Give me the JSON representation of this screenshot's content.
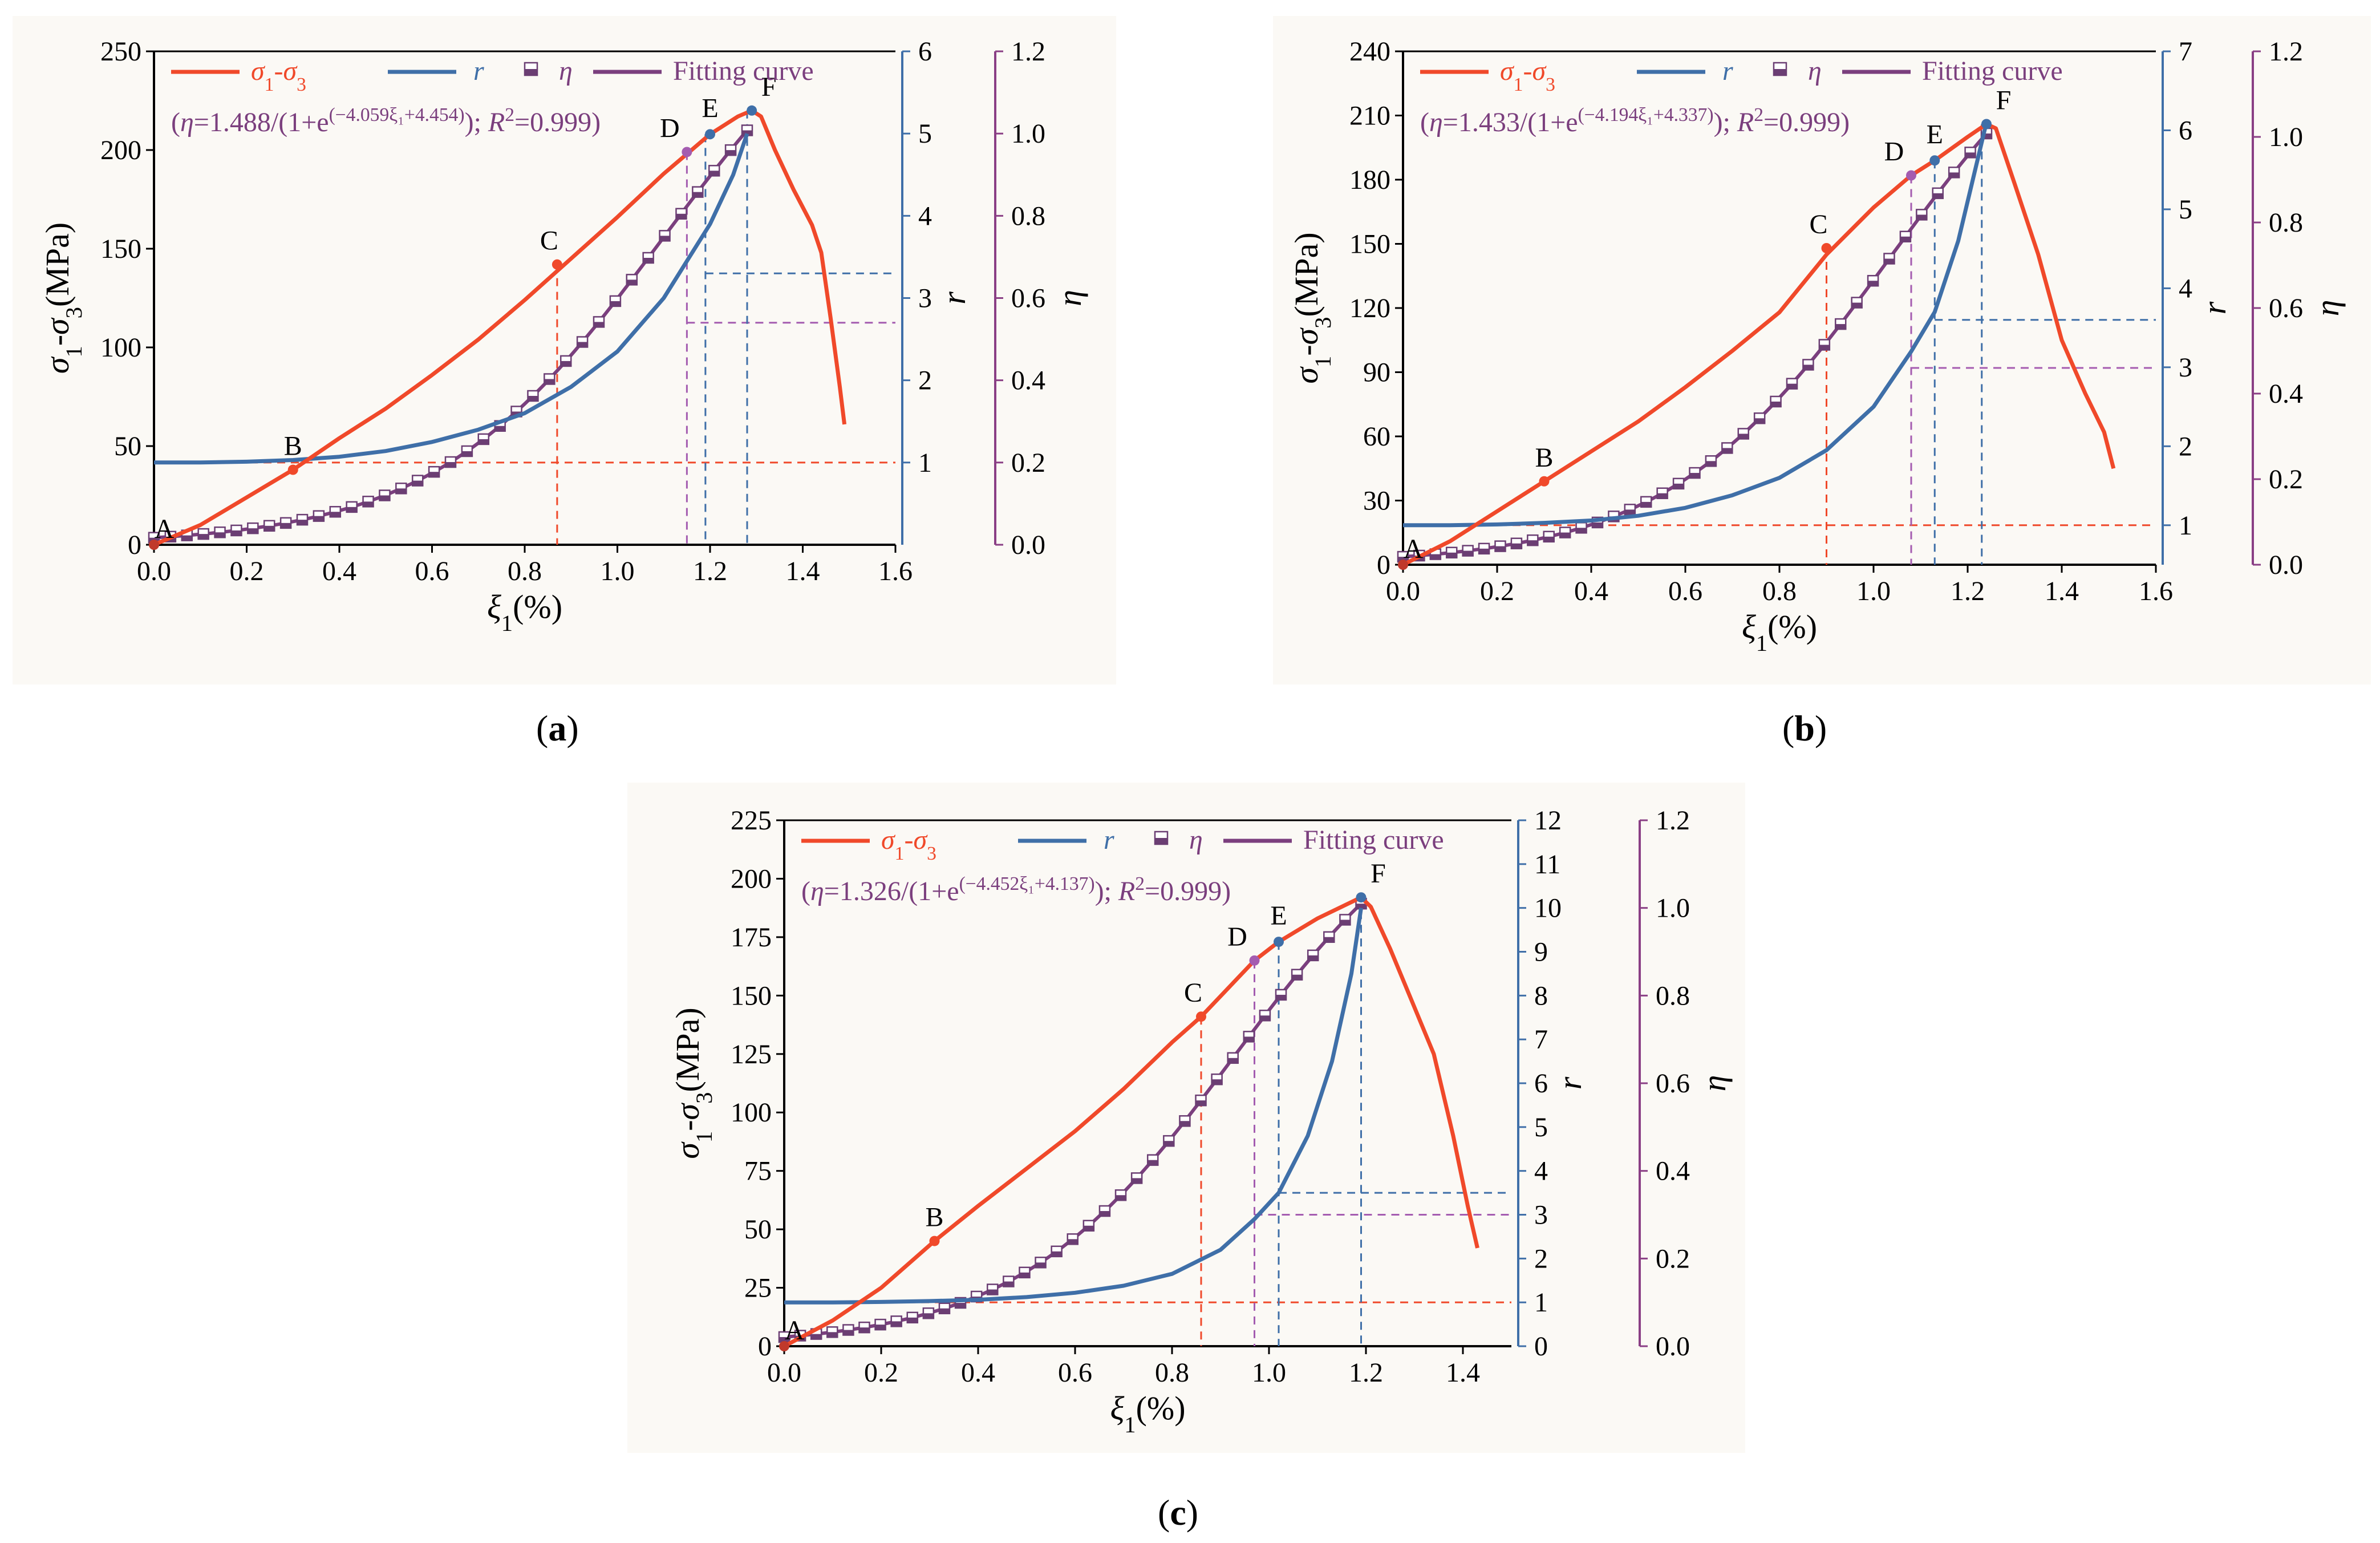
{
  "colors": {
    "stress": "#f0492a",
    "r": "#3f6fa8",
    "eta": "#7b3f7e",
    "etaMarker": "#6b3e73",
    "blueAxis": "#3f6fa8",
    "purpleAxis": "#8a3f85"
  },
  "panels": [
    {
      "caption_label": "a",
      "legend": {
        "stress": "σ1-σ3",
        "r": "r",
        "eta": "η",
        "fit": "Fitting curve",
        "equation": "(η=1.488/(1+e(−4.059ξ1+4.454)); R2=0.999)"
      },
      "points": {
        "A": "A",
        "B": "B",
        "C": "C",
        "D": "D",
        "E": "E",
        "F": "F"
      },
      "chart_data": {
        "type": "line",
        "xlabel": "ξ1(%)",
        "ylabel_left": "σ1-σ3(MPa)",
        "ylabel_r": "r",
        "ylabel_eta": "η",
        "xlim": [
          0,
          1.6
        ],
        "ylim": [
          0,
          250
        ],
        "rlim": [
          0,
          6
        ],
        "etalim": [
          0,
          1.2
        ],
        "xticks": [
          "0.0",
          "0.2",
          "0.4",
          "0.6",
          "0.8",
          "1.0",
          "1.2",
          "1.4",
          "1.6"
        ],
        "yticks": [
          "0",
          "50",
          "100",
          "150",
          "200",
          "250"
        ],
        "rticks": [
          "1",
          "2",
          "3",
          "4",
          "5",
          "6"
        ],
        "etaticks": [
          "0.0",
          "0.2",
          "0.4",
          "0.6",
          "0.8",
          "1.0",
          "1.2"
        ],
        "fit": {
          "a": 1.488,
          "b": 4.059,
          "c": 4.454,
          "r2": 0.999
        },
        "stress": [
          [
            0,
            0
          ],
          [
            0.1,
            10
          ],
          [
            0.2,
            24
          ],
          [
            0.3,
            38
          ],
          [
            0.4,
            54
          ],
          [
            0.5,
            69
          ],
          [
            0.6,
            86
          ],
          [
            0.7,
            104
          ],
          [
            0.8,
            124
          ],
          [
            0.9,
            145
          ],
          [
            1.0,
            166
          ],
          [
            1.1,
            188
          ],
          [
            1.15,
            198
          ],
          [
            1.2,
            208
          ],
          [
            1.26,
            217
          ],
          [
            1.29,
            220
          ],
          [
            1.31,
            217
          ],
          [
            1.34,
            200
          ],
          [
            1.38,
            180
          ],
          [
            1.42,
            162
          ],
          [
            1.44,
            148
          ],
          [
            1.46,
            115
          ],
          [
            1.48,
            80
          ],
          [
            1.49,
            61
          ]
        ],
        "r": [
          [
            0,
            1
          ],
          [
            0.1,
            1
          ],
          [
            0.2,
            1.01
          ],
          [
            0.3,
            1.03
          ],
          [
            0.4,
            1.07
          ],
          [
            0.5,
            1.14
          ],
          [
            0.6,
            1.25
          ],
          [
            0.7,
            1.4
          ],
          [
            0.8,
            1.6
          ],
          [
            0.9,
            1.92
          ],
          [
            1.0,
            2.35
          ],
          [
            1.1,
            3.0
          ],
          [
            1.2,
            3.9
          ],
          [
            1.25,
            4.5
          ],
          [
            1.28,
            5.0
          ]
        ],
        "keypoints": [
          {
            "name": "A",
            "x": 0.0,
            "y": 0
          },
          {
            "name": "B",
            "x": 0.3,
            "y": 38
          },
          {
            "name": "C",
            "x": 0.87,
            "y": 142
          },
          {
            "name": "D",
            "x": 1.15,
            "y": 199
          },
          {
            "name": "E",
            "x": 1.2,
            "y": 208
          },
          {
            "name": "F",
            "x": 1.29,
            "y": 220
          }
        ],
        "guides": {
          "xC": 0.87,
          "xD": 1.15,
          "xE": 1.19,
          "xF": 1.28,
          "r0": 1.0,
          "rE": 3.3,
          "etaD": 0.54
        }
      }
    },
    {
      "caption_label": "b",
      "legend": {
        "stress": "σ1-σ3",
        "r": "r",
        "eta": "η",
        "fit": "Fitting curve",
        "equation": "(η=1.433/(1+e(−4.194ξ1+4.337)); R2=0.999)"
      },
      "points": {
        "A": "A",
        "B": "B",
        "C": "C",
        "D": "D",
        "E": "E",
        "F": "F"
      },
      "chart_data": {
        "type": "line",
        "xlabel": "ξ1(%)",
        "ylabel_left": "σ1-σ3(MPa)",
        "ylabel_r": "r",
        "ylabel_eta": "η",
        "xlim": [
          0,
          1.6
        ],
        "ylim": [
          0,
          240
        ],
        "rlim": [
          0.5,
          7
        ],
        "etalim": [
          0,
          1.2
        ],
        "xticks": [
          "0.0",
          "0.2",
          "0.4",
          "0.6",
          "0.8",
          "1.0",
          "1.2",
          "1.4",
          "1.6"
        ],
        "yticks": [
          "0",
          "30",
          "60",
          "90",
          "120",
          "150",
          "180",
          "210",
          "240"
        ],
        "rticks": [
          "1",
          "2",
          "3",
          "4",
          "5",
          "6",
          "7"
        ],
        "etaticks": [
          "0.0",
          "0.2",
          "0.4",
          "0.6",
          "0.8",
          "1.0",
          "1.2"
        ],
        "fit": {
          "a": 1.433,
          "b": 4.194,
          "c": 4.337,
          "r2": 0.999
        },
        "stress": [
          [
            0,
            0
          ],
          [
            0.1,
            11
          ],
          [
            0.2,
            25
          ],
          [
            0.3,
            39
          ],
          [
            0.4,
            53
          ],
          [
            0.5,
            67
          ],
          [
            0.6,
            83
          ],
          [
            0.7,
            100
          ],
          [
            0.8,
            118
          ],
          [
            0.9,
            145
          ],
          [
            1.0,
            167
          ],
          [
            1.08,
            182
          ],
          [
            1.13,
            189
          ],
          [
            1.2,
            200
          ],
          [
            1.24,
            206
          ],
          [
            1.26,
            204
          ],
          [
            1.3,
            178
          ],
          [
            1.35,
            145
          ],
          [
            1.4,
            105
          ],
          [
            1.45,
            80
          ],
          [
            1.49,
            62
          ],
          [
            1.51,
            45
          ]
        ],
        "r": [
          [
            0,
            1
          ],
          [
            0.1,
            1
          ],
          [
            0.2,
            1.01
          ],
          [
            0.3,
            1.03
          ],
          [
            0.4,
            1.06
          ],
          [
            0.5,
            1.12
          ],
          [
            0.6,
            1.22
          ],
          [
            0.7,
            1.38
          ],
          [
            0.8,
            1.6
          ],
          [
            0.9,
            1.95
          ],
          [
            1.0,
            2.5
          ],
          [
            1.08,
            3.2
          ],
          [
            1.13,
            3.7
          ],
          [
            1.18,
            4.6
          ],
          [
            1.22,
            5.6
          ],
          [
            1.24,
            6.1
          ]
        ],
        "keypoints": [
          {
            "name": "A",
            "x": 0.0,
            "y": 0
          },
          {
            "name": "B",
            "x": 0.3,
            "y": 39
          },
          {
            "name": "C",
            "x": 0.9,
            "y": 148
          },
          {
            "name": "D",
            "x": 1.08,
            "y": 182
          },
          {
            "name": "E",
            "x": 1.13,
            "y": 189
          },
          {
            "name": "F",
            "x": 1.24,
            "y": 206
          }
        ],
        "guides": {
          "xC": 0.9,
          "xD": 1.08,
          "xE": 1.13,
          "xF": 1.23,
          "r0": 1.0,
          "rE": 3.6,
          "etaD": 0.46
        }
      }
    },
    {
      "caption_label": "c",
      "legend": {
        "stress": "σ1-σ3",
        "r": "r",
        "eta": "η",
        "fit": "Fitting curve",
        "equation": "(η=1.326/(1+e(−4.452ξ1+4.137)); R2=0.999)"
      },
      "points": {
        "A": "A",
        "B": "B",
        "C": "C",
        "D": "D",
        "E": "E",
        "F": "F"
      },
      "chart_data": {
        "type": "line",
        "xlabel": "ξ1(%)",
        "ylabel_left": "σ1-σ3(MPa)",
        "ylabel_r": "r",
        "ylabel_eta": "η",
        "xlim": [
          0,
          1.5
        ],
        "ylim": [
          0,
          225
        ],
        "rlim": [
          0,
          12
        ],
        "etalim": [
          0,
          1.2
        ],
        "xticks": [
          "0.0",
          "0.2",
          "0.4",
          "0.6",
          "0.8",
          "1.0",
          "1.2",
          "1.4"
        ],
        "yticks": [
          "0",
          "25",
          "50",
          "75",
          "100",
          "125",
          "150",
          "175",
          "200",
          "225"
        ],
        "rticks": [
          "0",
          "1",
          "2",
          "3",
          "4",
          "5",
          "6",
          "7",
          "8",
          "9",
          "10",
          "11",
          "12"
        ],
        "etaticks": [
          "0.0",
          "0.2",
          "0.4",
          "0.6",
          "0.8",
          "1.0",
          "1.2"
        ],
        "fit": {
          "a": 1.326,
          "b": 4.452,
          "c": 4.137,
          "r2": 0.999
        },
        "stress": [
          [
            0,
            0
          ],
          [
            0.1,
            11
          ],
          [
            0.2,
            25
          ],
          [
            0.31,
            45
          ],
          [
            0.4,
            60
          ],
          [
            0.5,
            76
          ],
          [
            0.6,
            92
          ],
          [
            0.7,
            110
          ],
          [
            0.8,
            130
          ],
          [
            0.86,
            141
          ],
          [
            0.97,
            165
          ],
          [
            1.02,
            173
          ],
          [
            1.1,
            183
          ],
          [
            1.19,
            192
          ],
          [
            1.21,
            188
          ],
          [
            1.25,
            170
          ],
          [
            1.3,
            145
          ],
          [
            1.34,
            125
          ],
          [
            1.38,
            90
          ],
          [
            1.41,
            60
          ],
          [
            1.43,
            42
          ]
        ],
        "r": [
          [
            0,
            1
          ],
          [
            0.1,
            1
          ],
          [
            0.2,
            1.01
          ],
          [
            0.3,
            1.03
          ],
          [
            0.4,
            1.06
          ],
          [
            0.5,
            1.12
          ],
          [
            0.6,
            1.22
          ],
          [
            0.7,
            1.38
          ],
          [
            0.8,
            1.65
          ],
          [
            0.9,
            2.2
          ],
          [
            0.97,
            2.9
          ],
          [
            1.02,
            3.5
          ],
          [
            1.08,
            4.8
          ],
          [
            1.13,
            6.5
          ],
          [
            1.17,
            8.5
          ],
          [
            1.19,
            10.0
          ]
        ],
        "keypoints": [
          {
            "name": "A",
            "x": 0.0,
            "y": 0
          },
          {
            "name": "B",
            "x": 0.31,
            "y": 45
          },
          {
            "name": "C",
            "x": 0.86,
            "y": 141
          },
          {
            "name": "D",
            "x": 0.97,
            "y": 165
          },
          {
            "name": "E",
            "x": 1.02,
            "y": 173
          },
          {
            "name": "F",
            "x": 1.19,
            "y": 192
          }
        ],
        "guides": {
          "xC": 0.86,
          "xD": 0.97,
          "xE": 1.02,
          "xF": 1.19,
          "r0": 1.0,
          "rE": 3.5,
          "etaD": 0.3
        }
      }
    }
  ]
}
